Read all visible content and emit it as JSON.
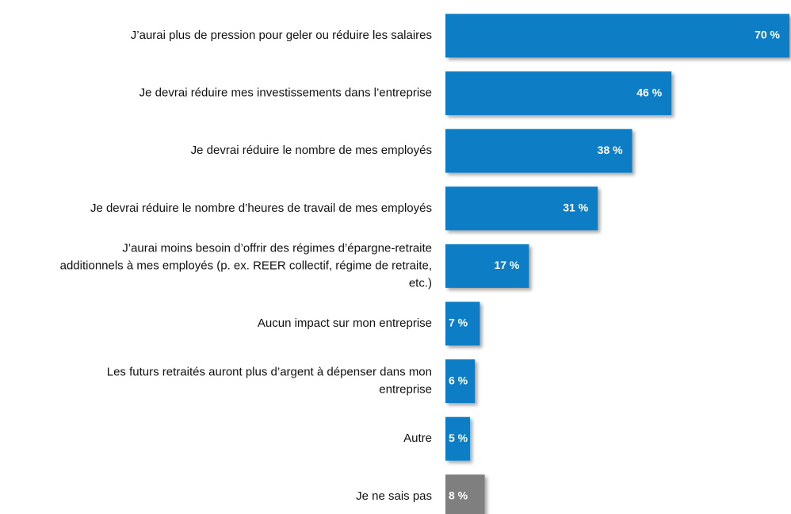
{
  "chart_data": {
    "type": "bar",
    "orientation": "horizontal",
    "categories": [
      [
        "J’aurai plus de pression pour geler ou réduire les salaires"
      ],
      [
        "Je devrai réduire mes investissements dans l’entreprise"
      ],
      [
        "Je devrai réduire le nombre de mes employés"
      ],
      [
        "Je devrai réduire le nombre d’heures de travail de mes employés"
      ],
      [
        "J’aurai moins besoin d’offrir des régimes d’épargne-retraite",
        "additionnels à mes employés (p. ex. REER collectif, régime de retraite,",
        "etc.)"
      ],
      [
        "Aucun impact sur mon entreprise"
      ],
      [
        "Les futurs retraités auront plus d’argent à dépenser dans mon",
        "entreprise"
      ],
      [
        "Autre"
      ],
      [
        "Je ne sais pas"
      ]
    ],
    "values": [
      70,
      46,
      38,
      31,
      17,
      7,
      6,
      5,
      8
    ],
    "value_labels": [
      "70 %",
      "46 %",
      "38 %",
      "31 %",
      "17 %",
      "7 %",
      "6 %",
      "5 %",
      "8 %"
    ],
    "colors": [
      "#0a7ec6",
      "#0a7ec6",
      "#0a7ec6",
      "#0a7ec6",
      "#0a7ec6",
      "#0a7ec6",
      "#0a7ec6",
      "#0a7ec6",
      "#7f7f7f"
    ]
  }
}
